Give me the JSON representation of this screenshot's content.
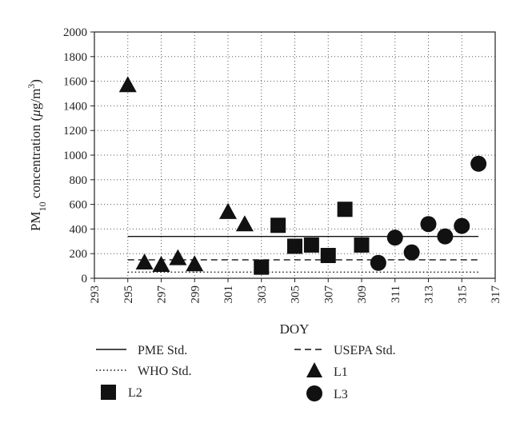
{
  "chart_data": {
    "type": "scatter",
    "xlabel": "DOY",
    "ylabel": {
      "prefix": "PM",
      "sub": "10",
      "middle": " concentration (",
      "mu": "μ",
      "unit": "g/m",
      "sup": "3",
      "suffix": ")"
    },
    "xlim": [
      293,
      317
    ],
    "ylim": [
      0,
      2000
    ],
    "xticks": [
      293,
      295,
      297,
      299,
      301,
      303,
      305,
      307,
      309,
      311,
      313,
      315,
      317
    ],
    "yticks": [
      0,
      200,
      400,
      600,
      800,
      1000,
      1200,
      1400,
      1600,
      1800,
      2000
    ],
    "grid": true,
    "legend_position": "bottom",
    "reference_lines": [
      {
        "name": "PME Std.",
        "value": 340,
        "x_range": [
          295,
          316
        ],
        "style": "solid"
      },
      {
        "name": "USEPA Std.",
        "value": 150,
        "x_range": [
          295,
          316
        ],
        "style": "dashed"
      },
      {
        "name": "WHO Std.",
        "value": 50,
        "x_range": [
          295,
          316
        ],
        "style": "dotted"
      }
    ],
    "series": [
      {
        "name": "L1",
        "marker": "triangle",
        "points": [
          {
            "x": 295,
            "y": 1570
          },
          {
            "x": 296,
            "y": 130
          },
          {
            "x": 297,
            "y": 110
          },
          {
            "x": 298,
            "y": 165
          },
          {
            "x": 299,
            "y": 115
          },
          {
            "x": 301,
            "y": 540
          },
          {
            "x": 302,
            "y": 440
          }
        ]
      },
      {
        "name": "L2",
        "marker": "square",
        "points": [
          {
            "x": 303,
            "y": 90
          },
          {
            "x": 304,
            "y": 430
          },
          {
            "x": 305,
            "y": 260
          },
          {
            "x": 306,
            "y": 270
          },
          {
            "x": 307,
            "y": 185
          },
          {
            "x": 308,
            "y": 560
          },
          {
            "x": 309,
            "y": 270
          }
        ]
      },
      {
        "name": "L3",
        "marker": "circle",
        "points": [
          {
            "x": 310,
            "y": 125
          },
          {
            "x": 311,
            "y": 330
          },
          {
            "x": 312,
            "y": 210
          },
          {
            "x": 313,
            "y": 440
          },
          {
            "x": 314,
            "y": 340
          },
          {
            "x": 315,
            "y": 425
          },
          {
            "x": 316,
            "y": 930
          }
        ]
      }
    ]
  },
  "legend": {
    "items": [
      {
        "label": "PME Std.",
        "symbol": "solid-line"
      },
      {
        "label": "USEPA Std.",
        "symbol": "dashed-line"
      },
      {
        "label": "WHO Std.",
        "symbol": "dotted-line"
      },
      {
        "label": "L1",
        "symbol": "triangle"
      },
      {
        "label": "L2",
        "symbol": "square"
      },
      {
        "label": "L3",
        "symbol": "circle"
      }
    ]
  },
  "colors": {
    "marker": "#111111",
    "axis": "#222222",
    "grid": "#555555",
    "background": "#ffffff"
  }
}
